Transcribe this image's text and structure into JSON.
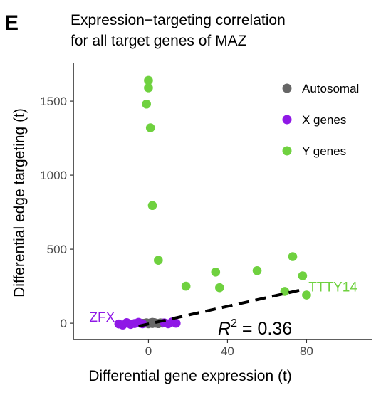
{
  "panel_letter": "E",
  "colors": {
    "autosomal": "#666666",
    "x_genes": "#8f18e6",
    "y_genes": "#6fd13f",
    "fit_line": "#000000"
  },
  "chart_data": {
    "type": "scatter",
    "title_lines": [
      "Expression−targeting correlation",
      "for all target genes of MAZ"
    ],
    "xlabel": "Differential gene expression (t)",
    "ylabel": "Differential edge targeting (t)",
    "xlim": [
      -38,
      113
    ],
    "ylim": [
      -110,
      1760
    ],
    "x_ticks": [
      0,
      40,
      80
    ],
    "y_ticks": [
      0,
      500,
      1000,
      1500
    ],
    "grid": false,
    "legend_position": "top-right",
    "series": [
      {
        "name": "Autosomal",
        "color_key": "autosomal",
        "points": [
          [
            -2,
            0
          ],
          [
            -1,
            3
          ],
          [
            0,
            -4
          ],
          [
            1,
            2
          ],
          [
            2,
            -2
          ],
          [
            3,
            4
          ],
          [
            4,
            0
          ],
          [
            5,
            -3
          ],
          [
            6,
            2
          ],
          [
            -3,
            -1
          ],
          [
            7,
            1
          ],
          [
            2,
            6
          ]
        ]
      },
      {
        "name": "X genes",
        "color_key": "x_genes",
        "points": [
          [
            -15,
            -5
          ],
          [
            -13,
            -12
          ],
          [
            -11,
            4
          ],
          [
            -9,
            -8
          ],
          [
            -7,
            -2
          ],
          [
            -5,
            6
          ],
          [
            -3,
            -4
          ],
          [
            8,
            2
          ],
          [
            10,
            -4
          ],
          [
            12,
            8
          ],
          [
            14,
            0
          ]
        ]
      },
      {
        "name": "Y genes",
        "color_key": "y_genes",
        "points": [
          [
            0,
            1640
          ],
          [
            0,
            1590
          ],
          [
            -1,
            1480
          ],
          [
            1,
            1320
          ],
          [
            2,
            795
          ],
          [
            5,
            425
          ],
          [
            19,
            250
          ],
          [
            34,
            345
          ],
          [
            36,
            240
          ],
          [
            55,
            355
          ],
          [
            69,
            215
          ],
          [
            73,
            450
          ],
          [
            78,
            320
          ],
          [
            80,
            190
          ]
        ]
      }
    ],
    "fit_line": {
      "x": [
        -5,
        79
      ],
      "y": [
        -20,
        230
      ]
    },
    "annotations": [
      {
        "text": "ZFX",
        "x": -17,
        "y": 20,
        "color_key": "x_genes"
      },
      {
        "text": "TTTY14",
        "x": 81,
        "y": 225,
        "color_key": "y_genes"
      }
    ],
    "r2_label": {
      "base": "R",
      "sup": "2",
      "rest": " = 0.36"
    }
  }
}
